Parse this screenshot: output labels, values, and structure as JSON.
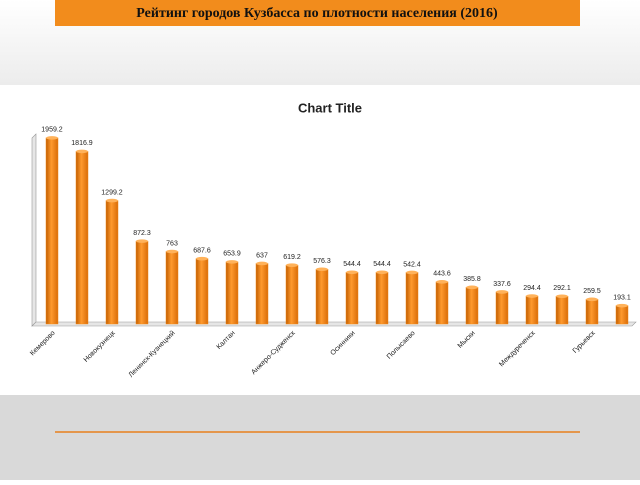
{
  "header": {
    "title": "Рейтинг городов Кузбасса по плотности населения (2016)"
  },
  "chart_data": {
    "type": "bar",
    "title": "Chart Title",
    "categories": [
      "Кемерово",
      null,
      "Новокузнецк",
      null,
      "Ленинск-Кузнецкий",
      null,
      "Калтан",
      null,
      "Анжеро-Судженск",
      null,
      "Осинники",
      null,
      "Полысаево",
      null,
      "Мыски",
      null,
      "Междуреченск",
      null,
      "Гурьевск",
      null
    ],
    "values": [
      1959.2,
      1816.9,
      1299.2,
      872.3,
      763,
      687.6,
      653.9,
      637,
      619.2,
      576.3,
      544.4,
      544.4,
      542.4,
      443.6,
      385.8,
      337.6,
      294.4,
      292.1,
      259.5,
      193.1
    ],
    "color": "#f28c1c",
    "ylim": [
      0,
      2000
    ]
  }
}
